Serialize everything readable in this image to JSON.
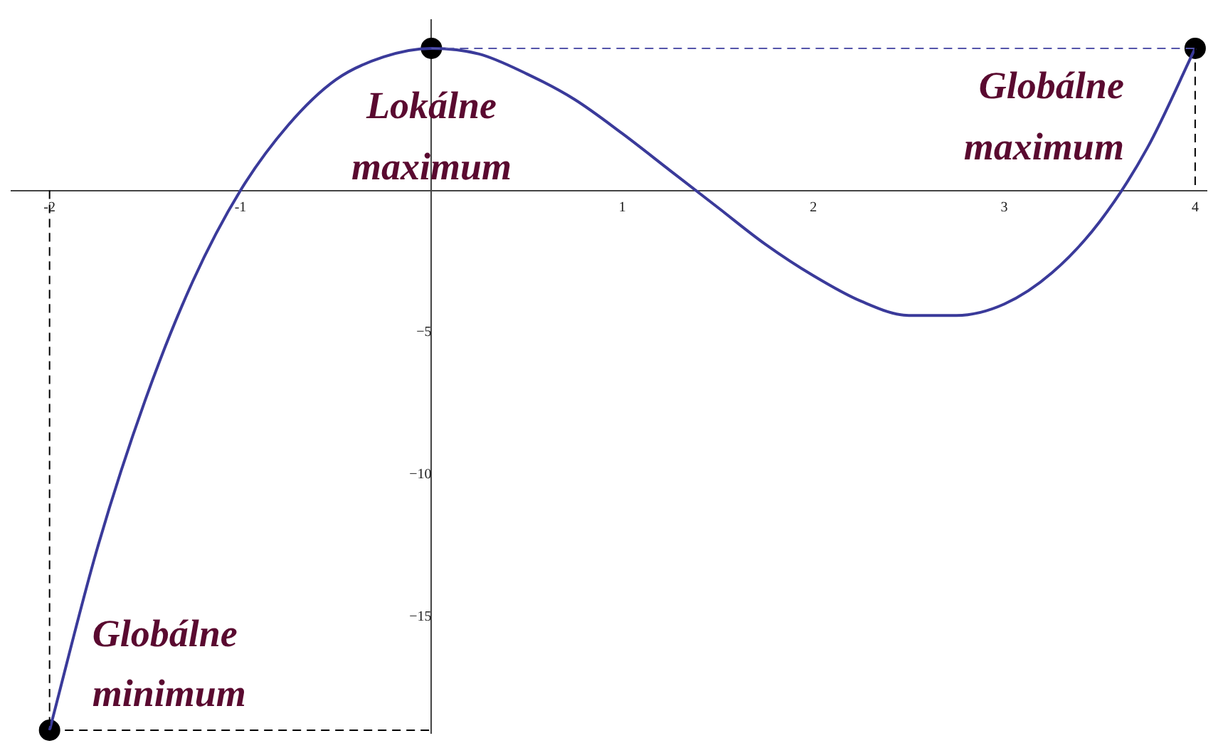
{
  "chart_data": {
    "type": "line",
    "xlim": [
      -2.2,
      4.06
    ],
    "ylim": [
      -19.1,
      6
    ],
    "xticks": [
      -2,
      -1,
      1,
      2,
      3,
      4
    ],
    "yticks": [
      -15,
      -10,
      -5
    ],
    "annotations": [
      {
        "text": "Lokálne maximum",
        "x": 0,
        "y": 5
      },
      {
        "text": "Globálne maximum",
        "x": 4,
        "y": 5
      },
      {
        "text": "Globálne minimum",
        "x": -2,
        "y": -19
      }
    ],
    "series": [
      {
        "type": "line",
        "color": "#5555aa",
        "x": [
          0,
          4
        ],
        "values": [
          5,
          5
        ],
        "line_style": "dashed",
        "marker": "none"
      },
      {
        "type": "line",
        "color": "#000000",
        "x": [
          4,
          4
        ],
        "values": [
          5,
          0
        ],
        "line_style": "dashed",
        "marker": "none"
      },
      {
        "type": "line",
        "color": "#000000",
        "x": [
          -2,
          -2,
          0
        ],
        "values": [
          0,
          -19,
          -19
        ],
        "line_style": "dashed",
        "marker": "none"
      },
      {
        "type": "line",
        "color": "#3a3a9a",
        "x": [
          -2,
          -1.75,
          -1.5,
          -1.25,
          -1,
          -0.75,
          -0.5,
          -0.25,
          0,
          0.25,
          0.5,
          0.75,
          1,
          1.25,
          1.5,
          1.75,
          2,
          2.25,
          2.5,
          2.75,
          3,
          3.25,
          3.5,
          3.75,
          4
        ],
        "values": [
          -19,
          -12.6,
          -7.4,
          -3.2,
          0,
          2.3,
          3.9,
          4.7,
          5,
          4.8,
          4.1,
          3.2,
          2,
          0.7,
          -0.6,
          -1.9,
          -3,
          -3.9,
          -4.4,
          -4.4,
          -4,
          -2.9,
          -1.1,
          1.5,
          5
        ],
        "line_style": "solid",
        "marker": "none"
      },
      {
        "type": "scatter",
        "color": "#000000",
        "x": [
          -2,
          0,
          4
        ],
        "values": [
          -19,
          5,
          5
        ],
        "marker": "circle"
      }
    ]
  }
}
